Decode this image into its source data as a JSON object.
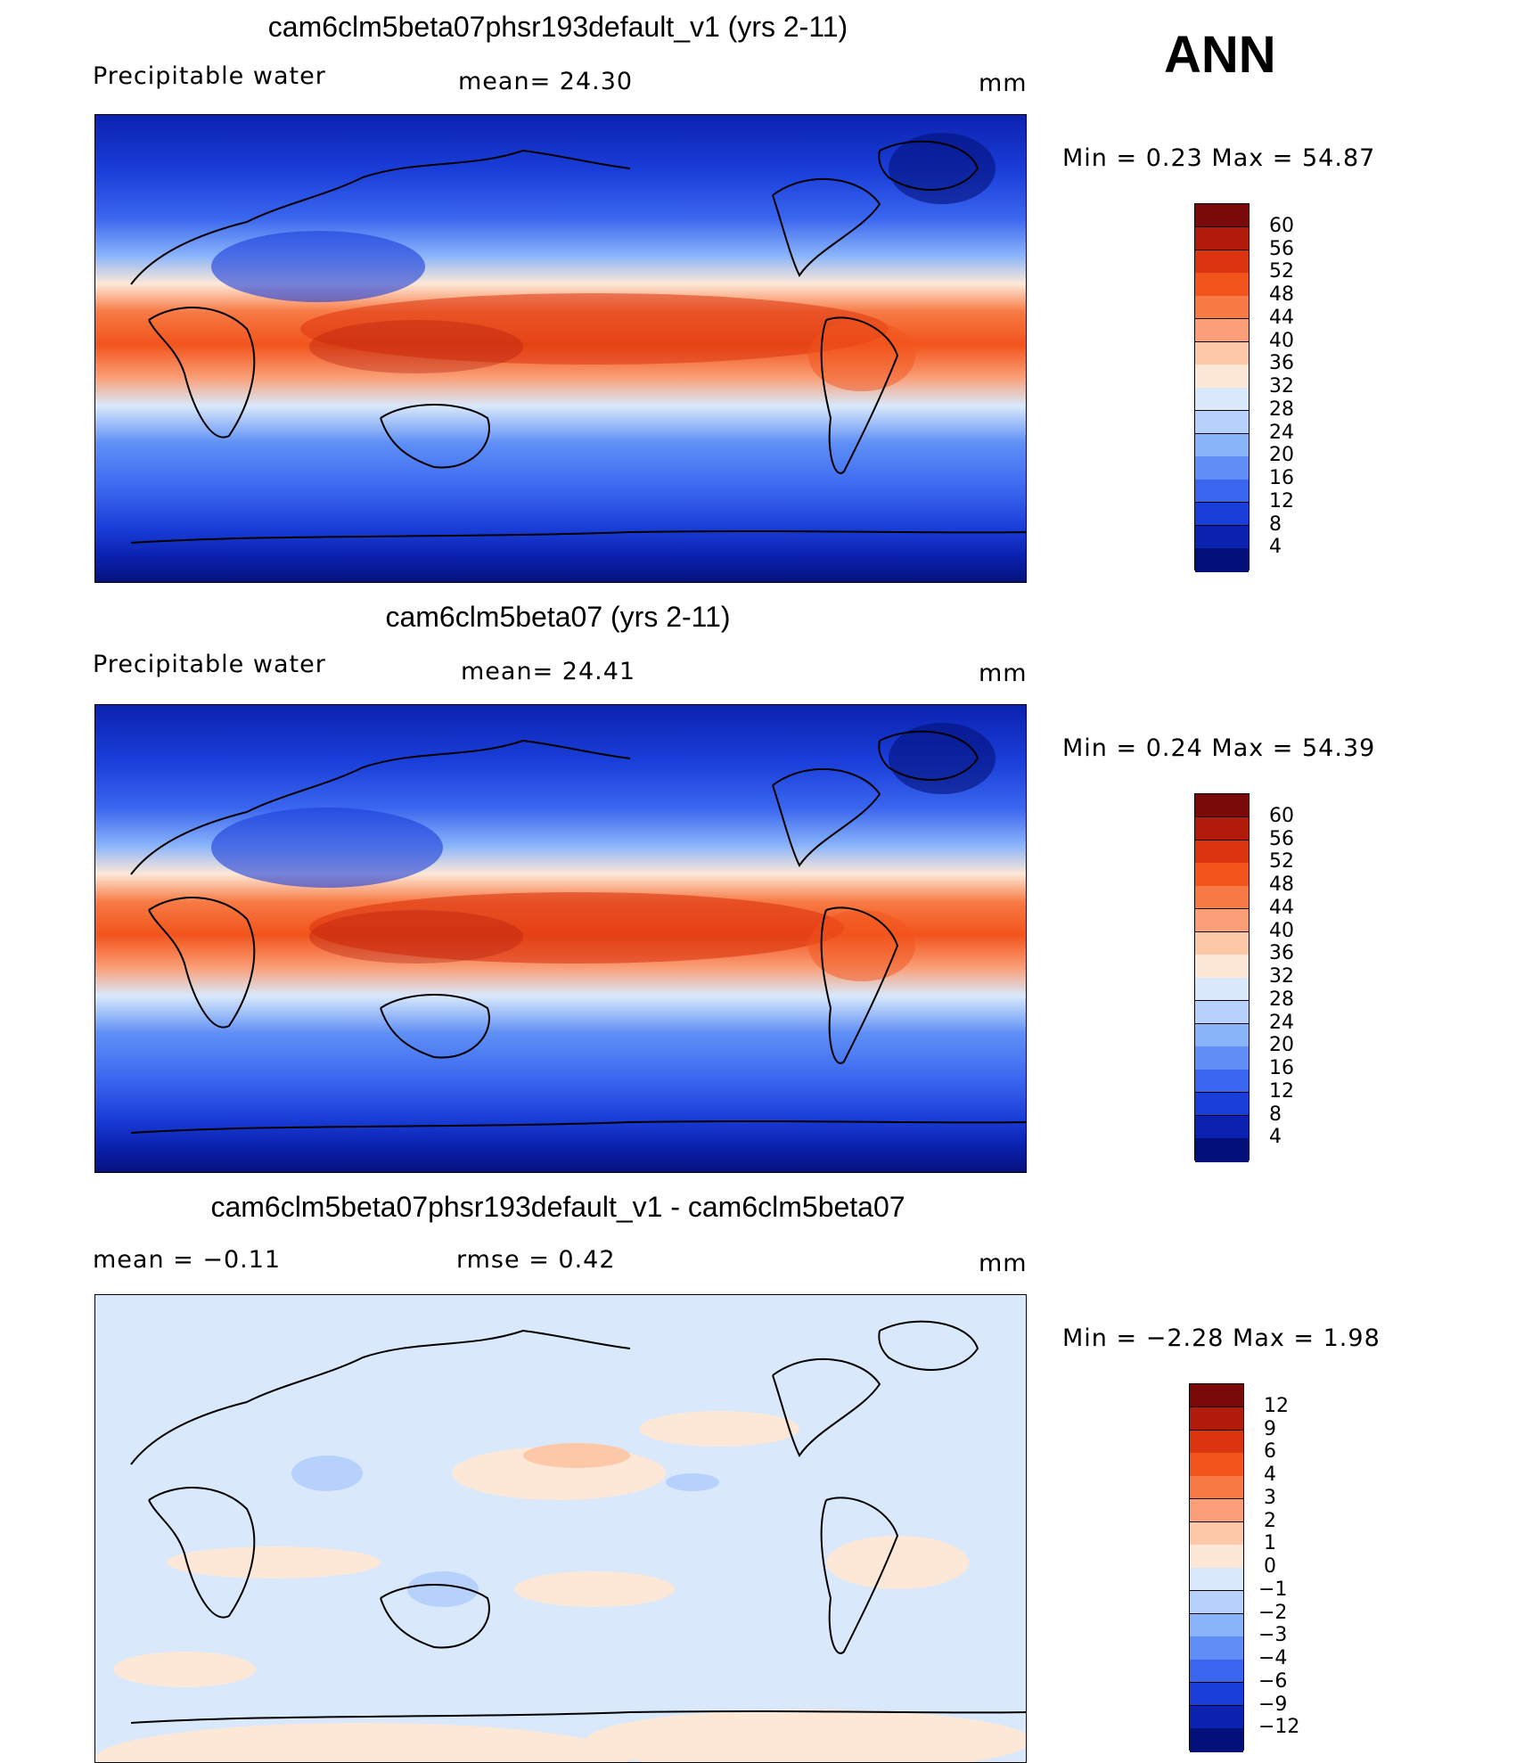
{
  "season": "ANN",
  "panels": [
    {
      "id": "test",
      "title": "cam6clm5beta07phsr193default_v1 (yrs 2-11)",
      "variable": "Precipitable  water",
      "stat1": "mean=   24.30",
      "stat2": "",
      "units": "mm",
      "minmax": "Min  =     0.23  Max  =     54.87",
      "colorbar": {
        "levels": [
          "60",
          "56",
          "52",
          "48",
          "44",
          "40",
          "36",
          "32",
          "28",
          "24",
          "20",
          "16",
          "12",
          "8",
          "4"
        ],
        "colors": [
          "#7a0a0a",
          "#b01b0b",
          "#dc340f",
          "#f2541c",
          "#f77a44",
          "#fa9f77",
          "#fdc8a8",
          "#fde8d8",
          "#d9e9fb",
          "#b6d1fb",
          "#8ab4fa",
          "#5f8ff6",
          "#3a66ef",
          "#1a3ed9",
          "#0b22b0",
          "#04107a"
        ]
      }
    },
    {
      "id": "control",
      "title": "cam6clm5beta07 (yrs 2-11)",
      "variable": "Precipitable  water",
      "stat1": "mean=   24.41",
      "stat2": "",
      "units": "mm",
      "minmax": "Min  =     0.24  Max  =     54.39",
      "colorbar": {
        "levels": [
          "60",
          "56",
          "52",
          "48",
          "44",
          "40",
          "36",
          "32",
          "28",
          "24",
          "20",
          "16",
          "12",
          "8",
          "4"
        ],
        "colors": [
          "#7a0a0a",
          "#b01b0b",
          "#dc340f",
          "#f2541c",
          "#f77a44",
          "#fa9f77",
          "#fdc8a8",
          "#fde8d8",
          "#d9e9fb",
          "#b6d1fb",
          "#8ab4fa",
          "#5f8ff6",
          "#3a66ef",
          "#1a3ed9",
          "#0b22b0",
          "#04107a"
        ]
      }
    },
    {
      "id": "difference",
      "title": "cam6clm5beta07phsr193default_v1 - cam6clm5beta07",
      "variable": "",
      "stat1": "mean  =    −0.11",
      "stat2": "rmse  =     0.42",
      "units": "mm",
      "minmax": "Min  =    −2.28  Max  =       1.98",
      "colorbar": {
        "levels": [
          "12",
          "9",
          "6",
          "4",
          "3",
          "2",
          "1",
          "0",
          "−1",
          "−2",
          "−3",
          "−4",
          "−6",
          "−9",
          "−12"
        ],
        "colors": [
          "#7a0a0a",
          "#b01b0b",
          "#dc340f",
          "#f2541c",
          "#f77a44",
          "#fa9f77",
          "#fdc8a8",
          "#fde8d8",
          "#d9e9fb",
          "#b6d1fb",
          "#8ab4fa",
          "#5f8ff6",
          "#3a66ef",
          "#1a3ed9",
          "#0b22b0",
          "#04107a"
        ]
      }
    }
  ]
}
